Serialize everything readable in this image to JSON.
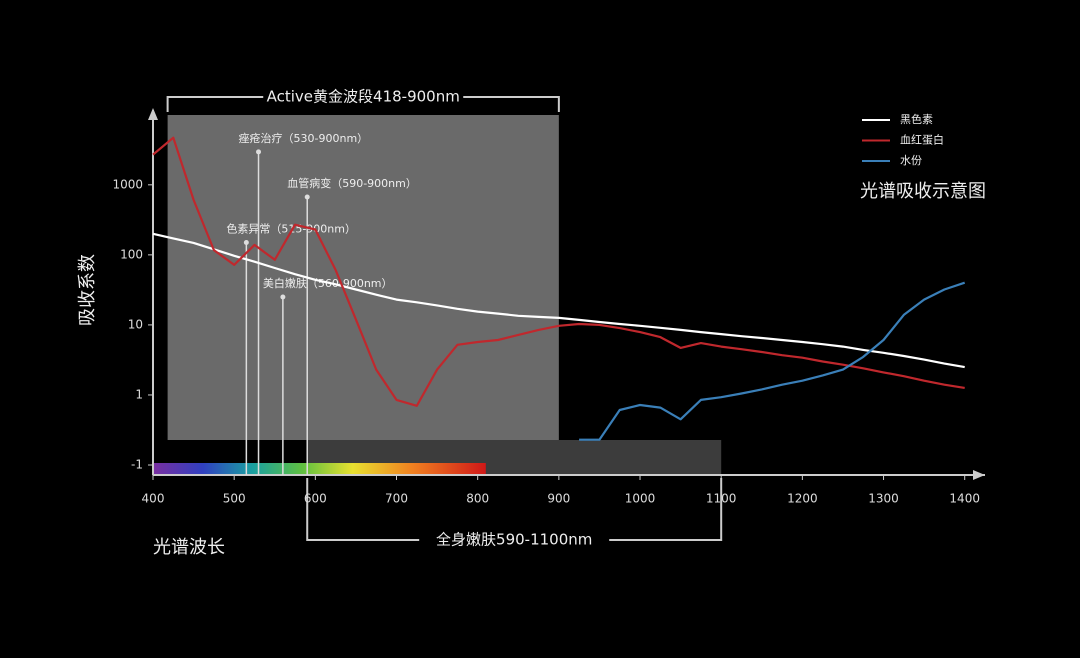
{
  "chart_data": {
    "type": "line",
    "title": "光谱吸收示意图",
    "x_label": "光谱波长",
    "y_label": "吸收系数",
    "log_y": true,
    "x": [
      400,
      425,
      450,
      475,
      500,
      525,
      550,
      575,
      600,
      625,
      650,
      675,
      700,
      725,
      750,
      775,
      800,
      825,
      850,
      875,
      900,
      925,
      950,
      975,
      1000,
      1025,
      1050,
      1075,
      1100,
      1125,
      1150,
      1175,
      1200,
      1225,
      1250,
      1275,
      1300,
      1325,
      1350,
      1375,
      1400
    ],
    "series": [
      {
        "name": "黑色素",
        "color": "#ffffff",
        "values": [
          200,
          172,
          148,
          120,
          97,
          80,
          65,
          53,
          44,
          38,
          32,
          27,
          23,
          21,
          19,
          17,
          15.5,
          14.5,
          13.5,
          13,
          12.6,
          11.8,
          11,
          10.3,
          9.7,
          9.1,
          8.5,
          7.9,
          7.4,
          6.9,
          6.5,
          6.1,
          5.7,
          5.3,
          4.9,
          4.4,
          4.0,
          3.6,
          3.2,
          2.8,
          2.5
        ]
      },
      {
        "name": "血红蛋白",
        "color": "#c0282d",
        "values": [
          2700,
          4700,
          610,
          117,
          72,
          139,
          85,
          270,
          230,
          61,
          12,
          2.3,
          0.85,
          0.7,
          2.3,
          5.2,
          5.7,
          6.1,
          7.2,
          8.5,
          9.7,
          10.3,
          10,
          9,
          7.9,
          6.7,
          4.7,
          5.5,
          4.9,
          4.5,
          4.1,
          3.7,
          3.4,
          3.0,
          2.7,
          2.4,
          2.1,
          1.85,
          1.6,
          1.4,
          1.26
        ]
      },
      {
        "name": "水份",
        "color": "#3a7fb8",
        "values": [
          null,
          null,
          null,
          null,
          null,
          null,
          null,
          null,
          null,
          null,
          null,
          null,
          null,
          null,
          null,
          null,
          null,
          null,
          null,
          null,
          null,
          0.23,
          0.23,
          0.61,
          0.72,
          0.66,
          0.45,
          0.85,
          0.93,
          1.05,
          1.2,
          1.4,
          1.6,
          1.9,
          2.3,
          3.5,
          6.1,
          13.9,
          23,
          32,
          40
        ]
      }
    ],
    "xlim": [
      400,
      1425
    ],
    "ylim": [
      0.072,
      11700
    ],
    "xticks": [
      400,
      500,
      600,
      700,
      800,
      900,
      1000,
      1100,
      1200,
      1300,
      1400
    ],
    "yticks": [
      {
        "value": 0.1,
        "label": "-1"
      },
      1,
      10,
      100,
      1000
    ],
    "regions": [
      {
        "label": "Active黄金波段418-900nm",
        "range": [
          418,
          900
        ]
      },
      {
        "label": "全身嫩肤590-1100nm",
        "range": [
          590,
          1100
        ]
      }
    ],
    "annotations": [
      {
        "label": "色素异常（515-900nm）",
        "x": 515,
        "y": 150
      },
      {
        "label": "痤疮治疗（530-900nm）",
        "x": 530,
        "y": 2950
      },
      {
        "label": "美白嫩肤（560-900nm）",
        "x": 560,
        "y": 25
      },
      {
        "label": "血管病变（590-900nm）",
        "x": 590,
        "y": 670
      }
    ],
    "spectrum_range": [
      400,
      810
    ],
    "legend": "top-right"
  }
}
